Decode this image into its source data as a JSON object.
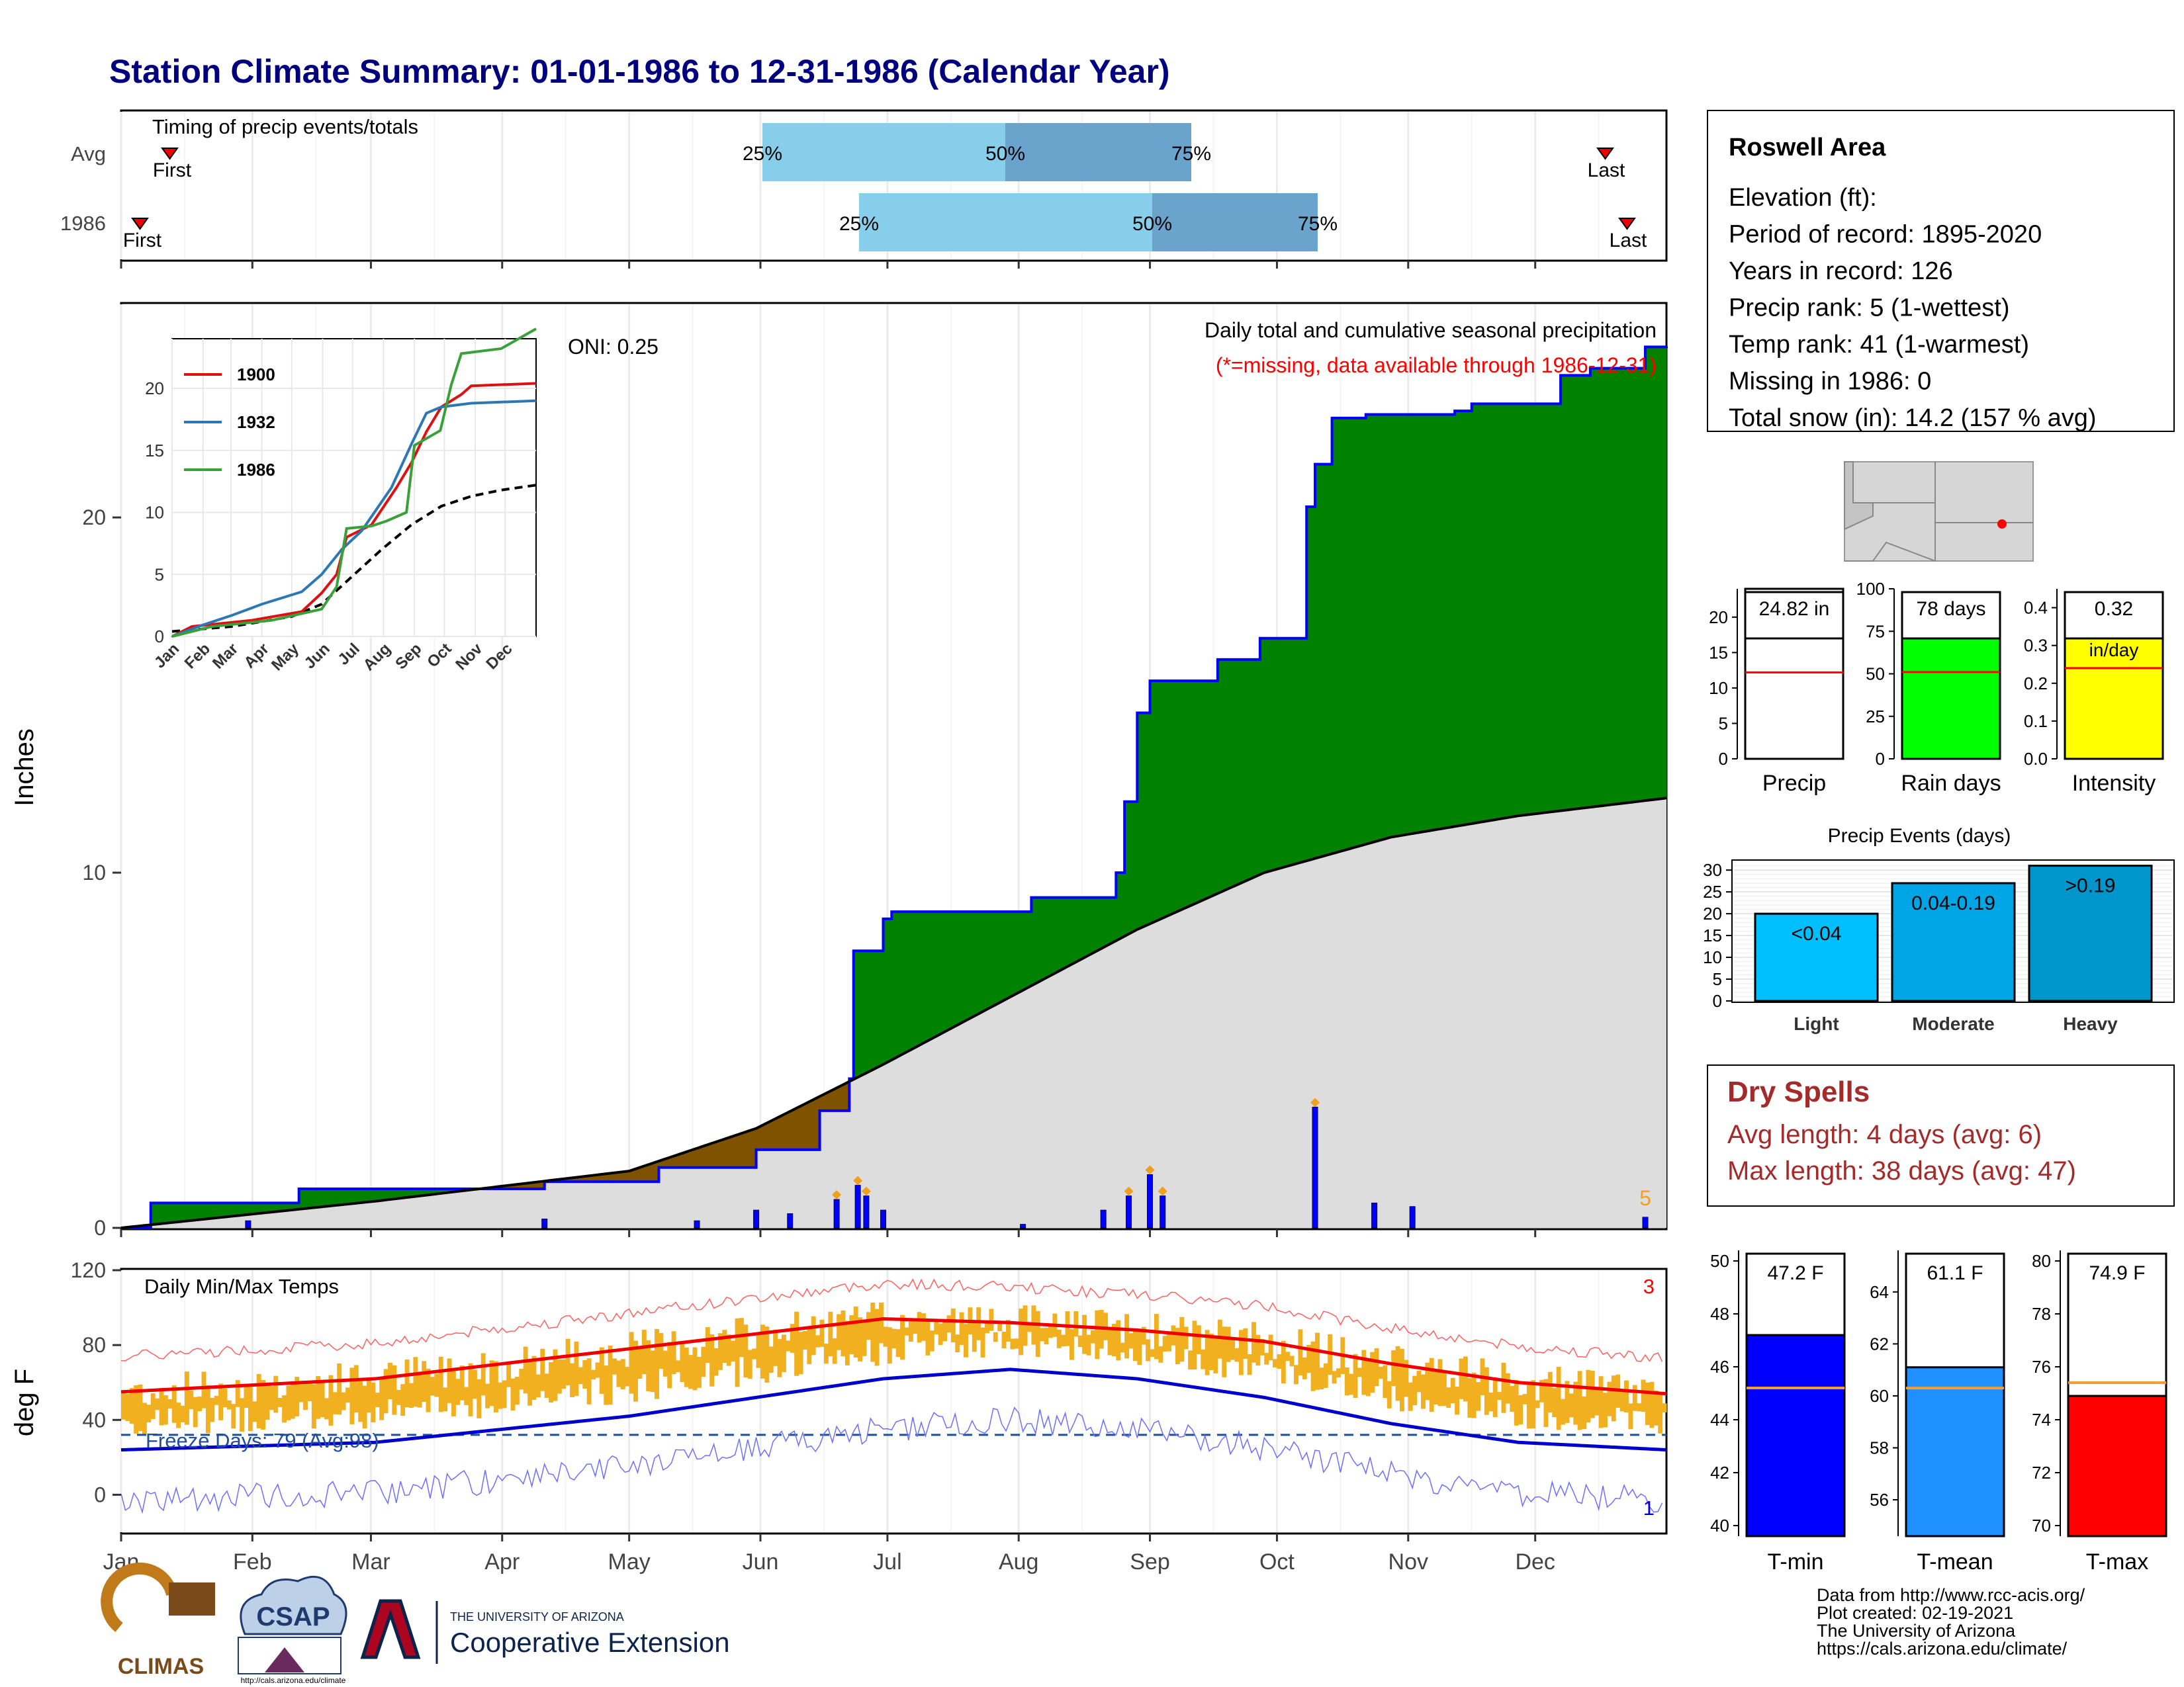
{
  "title": "Station Climate Summary: 01-01-1986 to 12-31-1986 (Calendar Year)",
  "months": [
    "Jan",
    "Feb",
    "Mar",
    "Apr",
    "May",
    "Jun",
    "Jul",
    "Aug",
    "Sep",
    "Oct",
    "Nov",
    "Dec"
  ],
  "months_inset": [
    "Jan",
    "Feb",
    "Mar",
    "Apr",
    "May",
    "Jun",
    "Jul",
    "Aug",
    "Sep",
    "Oct",
    "Nov",
    "Dec"
  ],
  "colors": {
    "title": "#00007f",
    "green": "#008200",
    "brown": "#7f5200",
    "gray_fill": "#dddddd",
    "blue_line": "#0000ff",
    "light_blue": "#87ceeb",
    "mid_blue": "#6aa3cc",
    "orange": "#f0b020",
    "red": "#ff0000",
    "dry_spell": "#a52a2a"
  },
  "timing": {
    "title": "Timing of precip events/totals",
    "rows": [
      {
        "label": "Avg",
        "first": "First",
        "last": "Last",
        "p25": "25%",
        "p50": "50%",
        "p75": "75%"
      },
      {
        "label": "1986",
        "first": "First",
        "last": "Last",
        "p25": "25%",
        "p50": "50%",
        "p75": "75%"
      }
    ]
  },
  "precip_panel": {
    "ylabel": "Inches",
    "oni": "ONI: 0.25",
    "caption1": "Daily total and cumulative seasonal precipitation",
    "caption2": "(*=missing, data available through 1986-12-31)",
    "corner_count": "5",
    "yticks": [
      "0",
      "10",
      "20"
    ]
  },
  "inset": {
    "legend": [
      "1900",
      "1932",
      "1986"
    ],
    "yticks": [
      "0",
      "5",
      "10",
      "15",
      "20"
    ]
  },
  "temp_panel": {
    "ylabel": "deg F",
    "title": "Daily Min/Max Temps",
    "freeze": "Freeze Days: 79 (Avg:98)",
    "count_top": "3",
    "count_bottom": "1",
    "yticks": [
      "0",
      "40",
      "80",
      "120"
    ]
  },
  "station": {
    "name": "Roswell Area",
    "lines": [
      "Elevation (ft):",
      "Period of record: 1895-2020",
      "Years in record: 126",
      "Precip rank: 5 (1-wettest)",
      "Temp rank: 41 (1-warmest)",
      "Missing in 1986: 0",
      "Total snow (in): 14.2 (157 % avg)"
    ]
  },
  "summary_bars": [
    {
      "label": "Precip",
      "value_text": "24.82 in",
      "yticks": [
        "0",
        "5",
        "10",
        "15",
        "20"
      ]
    },
    {
      "label": "Rain days",
      "value_text": "78 days",
      "yticks": [
        "0",
        "25",
        "50",
        "75",
        "100"
      ]
    },
    {
      "label": "Intensity",
      "value_text": "0.32",
      "unit": "in/day",
      "yticks": [
        "0.0",
        "0.1",
        "0.2",
        "0.3",
        "0.4"
      ]
    }
  ],
  "precip_events": {
    "title": "Precip Events (days)",
    "yticks": [
      "0",
      "5",
      "10",
      "15",
      "20",
      "25",
      "30"
    ],
    "bars": [
      {
        "label": "Light",
        "text": "<0.04",
        "value": 20
      },
      {
        "label": "Moderate",
        "text": "0.04-0.19",
        "value": 27
      },
      {
        "label": "Heavy",
        "text": ">0.19",
        "value": 31
      }
    ]
  },
  "dry_spells": {
    "title": "Dry Spells",
    "avg": "Avg length: 4 days (avg: 6)",
    "max": "Max length: 38 days (avg: 47)"
  },
  "temp_bars": [
    {
      "label": "T-min",
      "value_text": "47.2 F",
      "yticks": [
        "40",
        "42",
        "44",
        "46",
        "48",
        "50"
      ]
    },
    {
      "label": "T-mean",
      "value_text": "61.1 F",
      "yticks": [
        "56",
        "58",
        "60",
        "62",
        "64"
      ]
    },
    {
      "label": "T-max",
      "value_text": "74.9 F",
      "yticks": [
        "70",
        "72",
        "74",
        "76",
        "78",
        "80"
      ]
    }
  ],
  "credits": [
    "Data from http://www.rcc-acis.org/",
    "Plot created: 02-19-2021",
    "The University of Arizona",
    "https://cals.arizona.edu/climate/"
  ],
  "logos": {
    "climas": "CLIMAS",
    "csap": "CSAP",
    "csap_url": "http://cals.arizona.edu/climate",
    "ua_small": "THE UNIVERSITY OF ARIZONA",
    "ua_big": "Cooperative Extension"
  },
  "chart_data": [
    {
      "type": "area",
      "title": "Daily total and cumulative seasonal precipitation",
      "ylabel": "Inches",
      "ylim": [
        0,
        26
      ],
      "x_months": [
        "Jan",
        "Feb",
        "Mar",
        "Apr",
        "May",
        "Jun",
        "Jul",
        "Aug",
        "Sep",
        "Oct",
        "Nov",
        "Dec"
      ],
      "series": [
        {
          "name": "cumulative 1986",
          "x_doy": [
            0,
            7,
            40,
            42,
            100,
            127,
            150,
            165,
            172,
            173,
            180,
            182,
            185,
            215,
            220,
            235,
            237,
            240,
            243,
            255,
            259,
            261,
            269,
            280,
            282,
            286,
            294,
            315,
            319,
            340,
            347,
            360,
            365
          ],
          "y": [
            0,
            0.7,
            0.7,
            1.1,
            1.3,
            1.7,
            2.2,
            3.3,
            4.2,
            7.8,
            8.7,
            8.9,
            8.9,
            9.3,
            9.3,
            10,
            12,
            14.5,
            15.4,
            15.4,
            16,
            16,
            16.6,
            20.3,
            21.5,
            22.8,
            22.9,
            23,
            23.2,
            24,
            24.2,
            24.8,
            24.82
          ]
        },
        {
          "name": "cumulative average",
          "x_doy": [
            0,
            60,
            120,
            150,
            180,
            210,
            240,
            270,
            300,
            330,
            365
          ],
          "y": [
            0,
            0.75,
            1.6,
            2.8,
            4.6,
            6.5,
            8.4,
            10,
            11,
            11.6,
            12.1
          ]
        }
      ],
      "daily_precip": [
        {
          "doy": 30,
          "in": 0.2
        },
        {
          "doy": 100,
          "in": 0.25
        },
        {
          "doy": 136,
          "in": 0.2
        },
        {
          "doy": 150,
          "in": 0.5
        },
        {
          "doy": 158,
          "in": 0.4
        },
        {
          "doy": 169,
          "in": 0.8
        },
        {
          "doy": 174,
          "in": 1.2
        },
        {
          "doy": 176,
          "in": 0.9
        },
        {
          "doy": 180,
          "in": 0.5
        },
        {
          "doy": 213,
          "in": 0.1
        },
        {
          "doy": 232,
          "in": 0.5
        },
        {
          "doy": 238,
          "in": 0.9
        },
        {
          "doy": 243,
          "in": 1.5
        },
        {
          "doy": 246,
          "in": 0.9
        },
        {
          "doy": 282,
          "in": 3.4
        },
        {
          "doy": 296,
          "in": 0.7
        },
        {
          "doy": 305,
          "in": 0.6
        },
        {
          "doy": 360,
          "in": 0.3
        }
      ]
    },
    {
      "type": "line",
      "title": "Daily Min/Max Temps",
      "ylabel": "deg F",
      "ylim": [
        -20,
        120
      ],
      "series": [
        {
          "name": "avg max",
          "x_doy": [
            0,
            60,
            120,
            180,
            210,
            240,
            270,
            300,
            330,
            365
          ],
          "y": [
            55,
            62,
            78,
            94,
            92,
            88,
            82,
            70,
            60,
            54
          ]
        },
        {
          "name": "avg min",
          "x_doy": [
            0,
            60,
            120,
            180,
            210,
            240,
            270,
            300,
            330,
            365
          ],
          "y": [
            24,
            28,
            42,
            62,
            67,
            62,
            52,
            38,
            28,
            24
          ]
        }
      ],
      "freeze_line": 32
    },
    {
      "type": "bar",
      "categories": [
        "Light",
        "Moderate",
        "Heavy"
      ],
      "values": [
        20,
        27,
        31
      ],
      "title": "Precip Events (days)",
      "ylim": [
        0,
        32
      ]
    },
    {
      "type": "bar",
      "categories": [
        "T-min",
        "T-mean",
        "T-max"
      ],
      "values": [
        47.2,
        61.1,
        74.9
      ]
    },
    {
      "type": "bar",
      "categories": [
        "Precip",
        "Rain days",
        "Intensity"
      ],
      "values": [
        24.82,
        78,
        0.32
      ],
      "averages": [
        12.2,
        51,
        0.24
      ]
    }
  ]
}
